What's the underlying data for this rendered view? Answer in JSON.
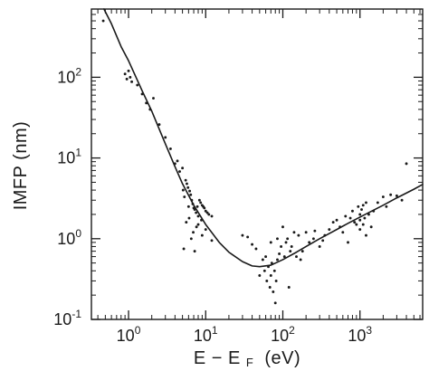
{
  "chart_data": {
    "type": "scatter",
    "xlabel": "E − E",
    "xlabel_sub": "F",
    "xlabel_unit": "(eV)",
    "ylabel": "IMFP  (nm)",
    "x_scale": "log",
    "y_scale": "log",
    "xlim": [
      0.33,
      6500
    ],
    "ylim": [
      0.1,
      700
    ],
    "grid": false,
    "x_ticks": [
      {
        "value": 1,
        "base": "10",
        "exp": "0"
      },
      {
        "value": 10,
        "base": "10",
        "exp": "1"
      },
      {
        "value": 100,
        "base": "10",
        "exp": "2"
      },
      {
        "value": 1000,
        "base": "10",
        "exp": "3"
      }
    ],
    "y_ticks": [
      {
        "value": 0.1,
        "base": "10",
        "exp": "-1"
      },
      {
        "value": 1,
        "base": "10",
        "exp": "0"
      },
      {
        "value": 10,
        "base": "10",
        "exp": "1"
      },
      {
        "value": 100,
        "base": "10",
        "exp": "2"
      }
    ],
    "series": [
      {
        "kind": "curve",
        "color": "#1a1a1a",
        "points": [
          [
            0.48,
            700
          ],
          [
            0.6,
            460
          ],
          [
            0.8,
            240
          ],
          [
            1,
            160
          ],
          [
            1.5,
            68
          ],
          [
            2,
            38
          ],
          [
            3,
            15
          ],
          [
            4,
            7.8
          ],
          [
            5,
            4.8
          ],
          [
            7,
            2.6
          ],
          [
            10,
            1.5
          ],
          [
            15,
            0.9
          ],
          [
            20,
            0.68
          ],
          [
            30,
            0.52
          ],
          [
            40,
            0.46
          ],
          [
            50,
            0.45
          ],
          [
            70,
            0.47
          ],
          [
            100,
            0.55
          ],
          [
            150,
            0.68
          ],
          [
            200,
            0.8
          ],
          [
            300,
            1.0
          ],
          [
            500,
            1.3
          ],
          [
            700,
            1.55
          ],
          [
            1000,
            1.85
          ],
          [
            2000,
            2.6
          ],
          [
            3000,
            3.2
          ],
          [
            5000,
            4.1
          ],
          [
            6500,
            4.7
          ]
        ]
      },
      {
        "kind": "points",
        "color": "#1a1a1a",
        "points": [
          [
            0.47,
            500
          ],
          [
            0.9,
            110
          ],
          [
            0.95,
            95
          ],
          [
            1,
            120
          ],
          [
            1.05,
            100
          ],
          [
            1.1,
            88
          ],
          [
            1.3,
            80
          ],
          [
            1.5,
            62
          ],
          [
            1.7,
            48
          ],
          [
            1.9,
            40
          ],
          [
            2.1,
            55
          ],
          [
            2.5,
            26
          ],
          [
            3,
            18
          ],
          [
            3.5,
            13
          ],
          [
            4,
            8.5
          ],
          [
            4.3,
            9.2
          ],
          [
            4.6,
            6.8
          ],
          [
            5,
            7.5
          ],
          [
            5.1,
            4
          ],
          [
            5.3,
            3.3
          ],
          [
            5.5,
            5.3
          ],
          [
            5.7,
            4.8
          ],
          [
            5.9,
            4.3
          ],
          [
            6,
            2.5
          ],
          [
            6.2,
            3.9
          ],
          [
            6.4,
            3.5
          ],
          [
            6.6,
            3.0
          ],
          [
            6.8,
            2.7
          ],
          [
            7,
            2.4
          ],
          [
            7.2,
            2.3
          ],
          [
            7.5,
            2.1
          ],
          [
            7.8,
            2.5
          ],
          [
            8,
            1.9
          ],
          [
            8.3,
            3.0
          ],
          [
            8.6,
            2.8
          ],
          [
            9,
            2.6
          ],
          [
            9.3,
            2.5
          ],
          [
            9.6,
            2.4
          ],
          [
            10,
            2.2
          ],
          [
            10.5,
            2.1
          ],
          [
            11,
            2.0
          ],
          [
            12,
            1.9
          ],
          [
            5.2,
            0.75
          ],
          [
            6.5,
            1.0
          ],
          [
            6.9,
            1.2
          ],
          [
            7.2,
            0.7
          ],
          [
            8,
            1.5
          ],
          [
            9,
            1.1
          ],
          [
            10,
            1.3
          ],
          [
            5.6,
            1.6
          ],
          [
            6.1,
            1.8
          ],
          [
            7.6,
            1.4
          ],
          [
            8.8,
            1.7
          ],
          [
            12,
            0.95
          ],
          [
            30,
            1.1
          ],
          [
            35,
            1.05
          ],
          [
            40,
            0.85
          ],
          [
            45,
            0.75
          ],
          [
            50,
            0.35
          ],
          [
            55,
            0.55
          ],
          [
            58,
            0.4
          ],
          [
            60,
            0.6
          ],
          [
            62,
            0.3
          ],
          [
            65,
            0.45
          ],
          [
            68,
            0.25
          ],
          [
            70,
            0.35
          ],
          [
            72,
            0.5
          ],
          [
            75,
            0.22
          ],
          [
            78,
            0.4
          ],
          [
            80,
            0.16
          ],
          [
            82,
            0.3
          ],
          [
            85,
            0.55
          ],
          [
            90,
            0.65
          ],
          [
            95,
            0.8
          ],
          [
            100,
            1.4
          ],
          [
            105,
            0.6
          ],
          [
            110,
            0.9
          ],
          [
            115,
            1.0
          ],
          [
            120,
            0.25
          ],
          [
            125,
            0.7
          ],
          [
            130,
            0.8
          ],
          [
            150,
            0.6
          ],
          [
            160,
            1.1
          ],
          [
            180,
            0.7
          ],
          [
            200,
            1.2
          ],
          [
            220,
            0.9
          ],
          [
            250,
            1.0
          ],
          [
            300,
            0.8
          ],
          [
            350,
            1.1
          ],
          [
            400,
            1.3
          ],
          [
            450,
            1.6
          ],
          [
            500,
            1.7
          ],
          [
            550,
            1.4
          ],
          [
            600,
            1.2
          ],
          [
            650,
            1.9
          ],
          [
            700,
            0.9
          ],
          [
            750,
            1.8
          ],
          [
            800,
            2.2
          ],
          [
            850,
            1.6
          ],
          [
            900,
            1.5
          ],
          [
            950,
            2.5
          ],
          [
            1000,
            1.3
          ],
          [
            1000,
            1.7
          ],
          [
            1000,
            2.0
          ],
          [
            1050,
            2.3
          ],
          [
            1100,
            1.5
          ],
          [
            1100,
            2.6
          ],
          [
            1150,
            1.8
          ],
          [
            1200,
            1.1
          ],
          [
            1200,
            2.8
          ],
          [
            1300,
            2.0
          ],
          [
            1400,
            1.4
          ],
          [
            1500,
            2.2
          ],
          [
            1700,
            2.8
          ],
          [
            2000,
            3.3
          ],
          [
            2200,
            2.5
          ],
          [
            2500,
            3.5
          ],
          [
            3000,
            3.4
          ],
          [
            3500,
            3.0
          ],
          [
            4000,
            8.5
          ],
          [
            70,
            0.9
          ],
          [
            85,
            1.0
          ],
          [
            140,
            1.2
          ],
          [
            170,
            0.55
          ],
          [
            260,
            1.25
          ],
          [
            330,
            0.95
          ]
        ]
      }
    ]
  }
}
